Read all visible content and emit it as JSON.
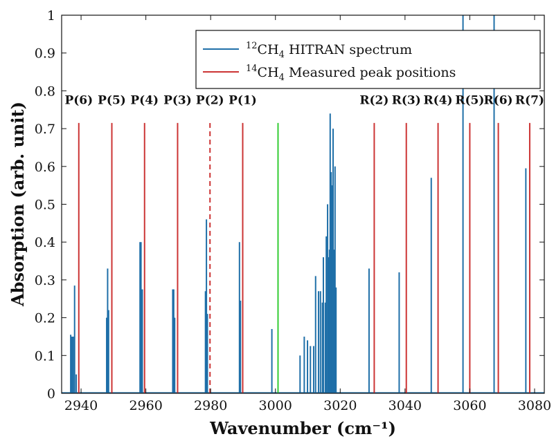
{
  "colors": {
    "hitran": "#1f6fa8",
    "measured": "#cc3333",
    "reference": "#33cc33",
    "axis": "#111111"
  },
  "chart_data": {
    "type": "line",
    "xlabel": "Wavenumber (cm⁻¹)",
    "ylabel": "Absorption (arb. unit)",
    "xlim": [
      2934,
      3083
    ],
    "ylim": [
      0,
      1
    ],
    "xticks": [
      2940,
      2960,
      2980,
      3000,
      3020,
      3040,
      3060,
      3080
    ],
    "xtick_labels": [
      "2940",
      "2960",
      "2980",
      "3000",
      "3020",
      "3040",
      "3060",
      "3080"
    ],
    "yticks": [
      0,
      0.1,
      0.2,
      0.3,
      0.4,
      0.5,
      0.6,
      0.7,
      0.8,
      0.9,
      1
    ],
    "ytick_labels": [
      "0",
      "0.1",
      "0.2",
      "0.3",
      "0.4",
      "0.5",
      "0.6",
      "0.7",
      "0.8",
      "0.9",
      "1"
    ],
    "legend": {
      "placement": "top-right",
      "entries": [
        {
          "sup": "12",
          "label": "CH",
          "sub": "4",
          "rest": " HITRAN spectrum",
          "series": "hitran"
        },
        {
          "sup": "14",
          "label": "CH",
          "sub": "4",
          "rest": " Measured peak positions",
          "series": "measured"
        }
      ]
    },
    "series": [
      {
        "name": "12CH4 HITRAN spectrum",
        "style": "sticks",
        "x": [
          2936.8,
          2937.2,
          2937.6,
          2938.0,
          2938.5,
          2947.9,
          2948.2,
          2948.5,
          2958.2,
          2958.5,
          2958.9,
          2968.3,
          2968.6,
          2968.9,
          2978.4,
          2978.7,
          2979.0,
          2988.9,
          2989.2,
          2998.9,
          3007.6,
          3008.9,
          3009.9,
          3010.8,
          3011.8,
          3012.4,
          3013.3,
          3013.9,
          3014.5,
          3014.8,
          3015.4,
          3015.7,
          3016.1,
          3016.4,
          3016.7,
          3016.9,
          3017.2,
          3017.5,
          3017.8,
          3018.1,
          3018.4,
          3018.7,
          3028.9,
          3038.2,
          3048.1,
          3057.9,
          3067.5,
          3077.3
        ],
        "y": [
          0.155,
          0.15,
          0.15,
          0.285,
          0.05,
          0.2,
          0.33,
          0.22,
          0.4,
          0.4,
          0.275,
          0.275,
          0.275,
          0.2,
          0.27,
          0.46,
          0.21,
          0.4,
          0.245,
          0.17,
          0.1,
          0.15,
          0.14,
          0.125,
          0.125,
          0.31,
          0.27,
          0.27,
          0.24,
          0.36,
          0.24,
          0.415,
          0.5,
          0.36,
          0.38,
          0.74,
          0.585,
          0.55,
          0.7,
          0.38,
          0.6,
          0.28,
          0.33,
          0.32,
          0.57,
          1.0,
          1.0,
          0.595
        ]
      },
      {
        "name": "14CH4 Measured peak positions",
        "style": "vlines",
        "x": [
          2939.3,
          2949.5,
          2959.6,
          2969.8,
          2979.8,
          2989.9,
          3030.5,
          3040.4,
          3050.2,
          3060.0,
          3068.8,
          3078.5
        ],
        "y": [
          0.715,
          0.715,
          0.715,
          0.715,
          0.715,
          0.715,
          0.715,
          0.715,
          0.715,
          0.715,
          0.715,
          0.715
        ],
        "dashed": [
          false,
          false,
          false,
          false,
          true,
          false,
          false,
          false,
          false,
          false,
          false,
          false
        ]
      },
      {
        "style": "vlines",
        "x": [
          3000.8
        ],
        "y": [
          0.715
        ]
      }
    ],
    "annotations": [
      {
        "text": "P(6)",
        "x": 2939.3
      },
      {
        "text": "P(5)",
        "x": 2949.5
      },
      {
        "text": "P(4)",
        "x": 2959.6
      },
      {
        "text": "P(3)",
        "x": 2969.8
      },
      {
        "text": "P(2)",
        "x": 2979.8
      },
      {
        "text": "P(1)",
        "x": 2989.9
      },
      {
        "text": "R(2)",
        "x": 3030.5
      },
      {
        "text": "R(3)",
        "x": 3040.4
      },
      {
        "text": "R(4)",
        "x": 3050.2
      },
      {
        "text": "R(5)",
        "x": 3060.0
      },
      {
        "text": "R(6)",
        "x": 3068.8
      },
      {
        "text": "R(7)",
        "x": 3078.5
      }
    ],
    "annotation_y": 0.765,
    "grid": false
  }
}
